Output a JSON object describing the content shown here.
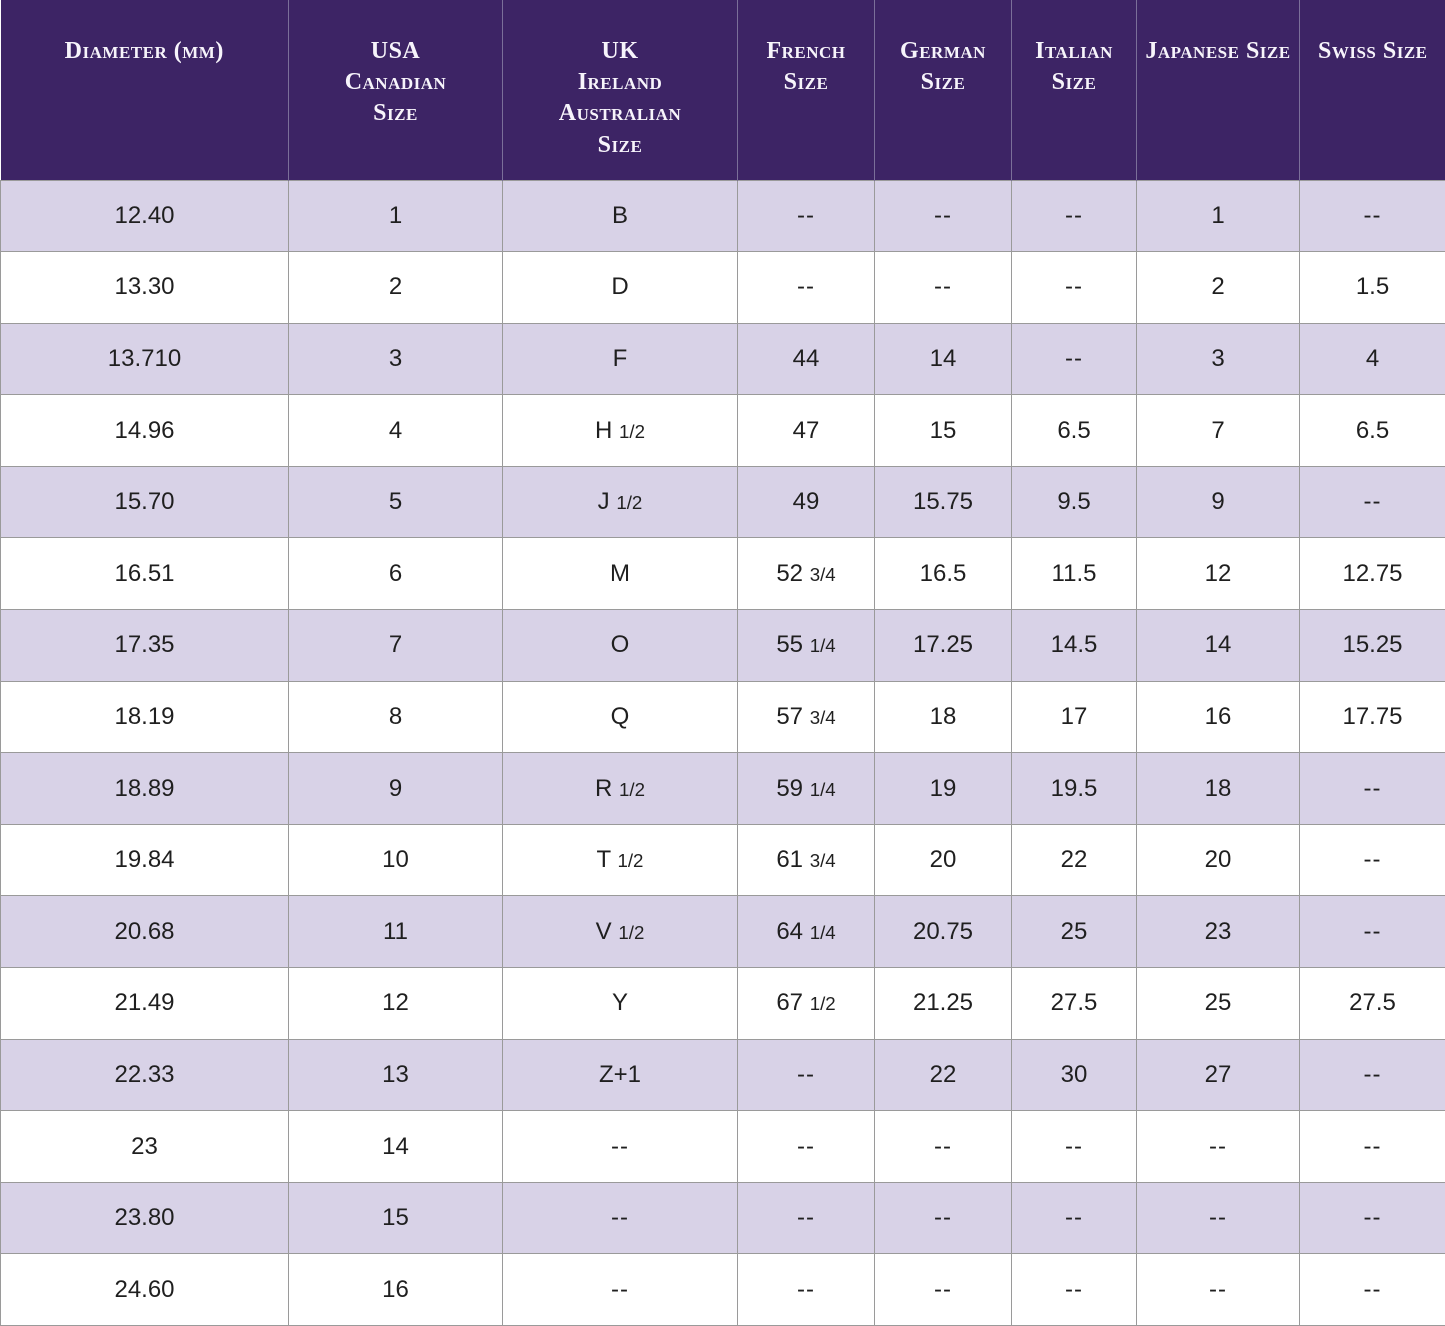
{
  "colors": {
    "header_bg": "#3d2465",
    "header_text": "#f7f4fb",
    "row_alt_bg": "#d8d2e7",
    "row_bg": "#ffffff",
    "cell_text": "#1f1f1f",
    "grid_line": "#9a9a9a"
  },
  "chart_data": {
    "type": "table",
    "columns": [
      {
        "label": "Diameter (mm)",
        "lines": [
          "Diameter (mm)"
        ]
      },
      {
        "label": "USA Canadian Size",
        "lines": [
          "USA",
          "Canadian",
          "Size"
        ]
      },
      {
        "label": "UK Ireland Australian Size",
        "lines": [
          "UK",
          "Ireland",
          "Australian",
          "Size"
        ]
      },
      {
        "label": "French Size",
        "lines": [
          "French",
          "Size"
        ]
      },
      {
        "label": "German Size",
        "lines": [
          "German",
          "Size"
        ]
      },
      {
        "label": "Italian Size",
        "lines": [
          "Italian",
          "Size"
        ]
      },
      {
        "label": "Japanese Size",
        "lines": [
          "Japanese Size"
        ]
      },
      {
        "label": "Swiss Size",
        "lines": [
          "Swiss Size"
        ]
      }
    ],
    "rows": [
      [
        "12.40",
        "1",
        "B",
        "--",
        "--",
        "--",
        "1",
        "--"
      ],
      [
        "13.30",
        "2",
        "D",
        "--",
        "--",
        "--",
        "2",
        "1.5"
      ],
      [
        "13.710",
        "3",
        "F",
        "44",
        "14",
        "--",
        "3",
        "4"
      ],
      [
        "14.96",
        "4",
        "H 1/2",
        "47",
        "15",
        "6.5",
        "7",
        "6.5"
      ],
      [
        "15.70",
        "5",
        "J 1/2",
        "49",
        "15.75",
        "9.5",
        "9",
        "--"
      ],
      [
        "16.51",
        "6",
        "M",
        "52 3/4",
        "16.5",
        "11.5",
        "12",
        "12.75"
      ],
      [
        "17.35",
        "7",
        "O",
        "55 1/4",
        "17.25",
        "14.5",
        "14",
        "15.25"
      ],
      [
        "18.19",
        "8",
        "Q",
        "57 3/4",
        "18",
        "17",
        "16",
        "17.75"
      ],
      [
        "18.89",
        "9",
        "R 1/2",
        "59 1/4",
        "19",
        "19.5",
        "18",
        "--"
      ],
      [
        "19.84",
        "10",
        "T 1/2",
        "61 3/4",
        "20",
        "22",
        "20",
        "--"
      ],
      [
        "20.68",
        "11",
        "V 1/2",
        "64 1/4",
        "20.75",
        "25",
        "23",
        "--"
      ],
      [
        "21.49",
        "12",
        "Y",
        "67 1/2",
        "21.25",
        "27.5",
        "25",
        "27.5"
      ],
      [
        "22.33",
        "13",
        "Z+1",
        "--",
        "22",
        "30",
        "27",
        "--"
      ],
      [
        "23",
        "14",
        "--",
        "--",
        "--",
        "--",
        "--",
        "--"
      ],
      [
        "23.80",
        "15",
        "--",
        "--",
        "--",
        "--",
        "--",
        "--"
      ],
      [
        "24.60",
        "16",
        "--",
        "--",
        "--",
        "--",
        "--",
        "--"
      ]
    ]
  }
}
